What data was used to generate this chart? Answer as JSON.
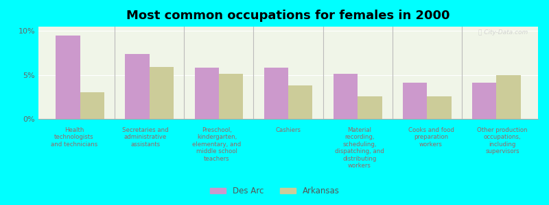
{
  "title": "Most common occupations for females in 2000",
  "categories": [
    "Health\ntechnologists\nand technicians",
    "Secretaries and\nadministrative\nassistants",
    "Preschool,\nkindergarten,\nelementary, and\nmiddle school\nteachers",
    "Cashiers",
    "Material\nrecording,\nscheduling,\ndispatching, and\ndistributing\nworkers",
    "Cooks and food\npreparation\nworkers",
    "Other production\noccupations,\nincluding\nsupervisors"
  ],
  "des_arc_values": [
    9.5,
    7.4,
    5.8,
    5.8,
    5.1,
    4.1,
    4.1
  ],
  "arkansas_values": [
    3.0,
    5.9,
    5.1,
    3.8,
    2.6,
    2.6,
    5.0
  ],
  "des_arc_color": "#cc99cc",
  "arkansas_color": "#cccc99",
  "background_color": "#00ffff",
  "plot_bg_color": "#f0f5e8",
  "ylim": [
    0,
    10.5
  ],
  "yticks": [
    0,
    5,
    10
  ],
  "ytick_labels": [
    "0%",
    "5%",
    "10%"
  ],
  "bar_width": 0.35,
  "legend_labels": [
    "Des Arc",
    "Arkansas"
  ],
  "watermark": "ⓘ City-Data.com",
  "title_fontsize": 13,
  "tick_label_color": "#996666",
  "ytick_color": "#666666"
}
